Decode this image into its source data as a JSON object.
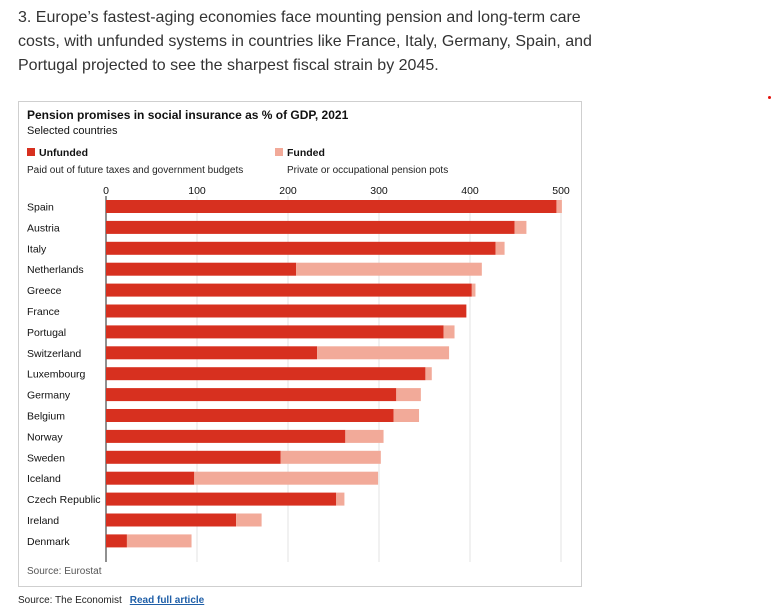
{
  "heading": "3. Europe’s fastest-aging economies face mounting pension and long-term care costs, with unfunded systems in countries like France, Italy, Germany, Spain, and Portugal projected to see the sharpest fiscal strain by 2045.",
  "footer": {
    "source_label": "Source: The Economist",
    "link_label": "Read full article"
  },
  "chart_data": {
    "type": "bar",
    "orientation": "horizontal",
    "stacked": true,
    "title": "Pension promises in social insurance as % of GDP, 2021",
    "subtitle": "Selected countries",
    "xlim": [
      0,
      500
    ],
    "xticks": [
      0,
      100,
      200,
      300,
      400,
      500
    ],
    "categories": [
      "Spain",
      "Austria",
      "Italy",
      "Netherlands",
      "Greece",
      "France",
      "Portugal",
      "Switzerland",
      "Luxembourg",
      "Germany",
      "Belgium",
      "Norway",
      "Sweden",
      "Iceland",
      "Czech Republic",
      "Ireland",
      "Denmark"
    ],
    "series": [
      {
        "name": "Unfunded",
        "description": "Paid out of future taxes and government budgets",
        "color": "#d7301f",
        "values": [
          495,
          449,
          428,
          209,
          402,
          396,
          371,
          232,
          351,
          319,
          316,
          263,
          192,
          97,
          253,
          143,
          23
        ]
      },
      {
        "name": "Funded",
        "description": "Private or occupational pension pots",
        "color": "#f2aa99",
        "values": [
          6,
          13,
          10,
          204,
          4,
          0,
          12,
          145,
          7,
          27,
          28,
          42,
          110,
          202,
          9,
          28,
          71
        ]
      }
    ],
    "source": "Source: Eurostat"
  }
}
